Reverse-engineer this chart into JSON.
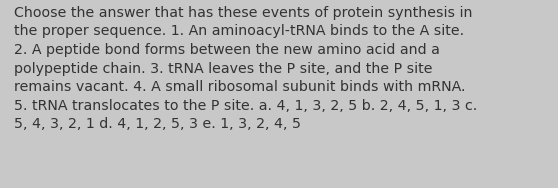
{
  "text": "Choose the answer that has these events of protein synthesis in\nthe proper sequence. 1. An aminoacyl-tRNA binds to the A site.\n2. A peptide bond forms between the new amino acid and a\npolypeptide chain. 3. tRNA leaves the P site, and the P site\nremains vacant. 4. A small ribosomal subunit binds with mRNA.\n5. tRNA translocates to the P site. a. 4, 1, 3, 2, 5 b. 2, 4, 5, 1, 3 c.\n5, 4, 3, 2, 1 d. 4, 1, 2, 5, 3 e. 1, 3, 2, 4, 5",
  "background_color": "#c8c8c8",
  "text_color": "#333333",
  "font_size": 10.2,
  "fig_width": 5.58,
  "fig_height": 1.88,
  "dpi": 100
}
